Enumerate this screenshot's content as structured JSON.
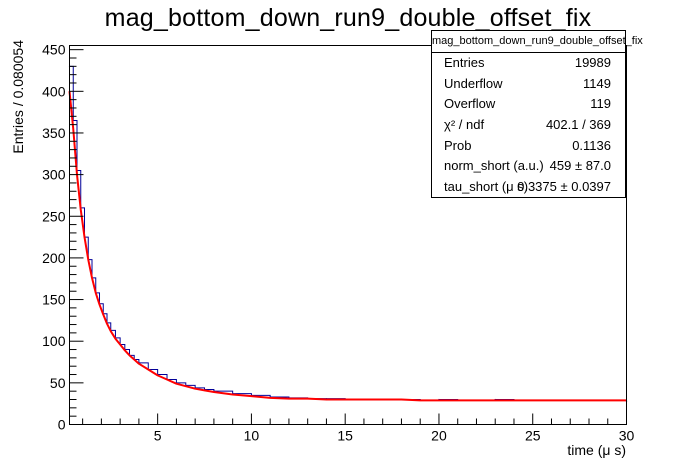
{
  "chart_data": {
    "type": "line",
    "title": "mag_bottom_down_run9_double_offset_fix",
    "xlabel": "time (μ s)",
    "ylabel": "Entries / 0.080054",
    "xlim": [
      0.3,
      30
    ],
    "ylim": [
      0,
      455
    ],
    "x_ticks": [
      5,
      10,
      15,
      20,
      25,
      30
    ],
    "y_ticks": [
      0,
      50,
      100,
      150,
      200,
      250,
      300,
      350,
      400,
      450
    ],
    "x_tick_labels": [
      "5",
      "10",
      "15",
      "20",
      "25",
      "30"
    ],
    "y_tick_labels": [
      "0",
      "50",
      "100",
      "150",
      "200",
      "250",
      "300",
      "350",
      "400",
      "450"
    ],
    "grid": false,
    "series": [
      {
        "color": "#000099",
        "style": "histogram",
        "x": [
          0.3,
          0.5,
          0.7,
          0.9,
          1.1,
          1.3,
          1.5,
          1.7,
          1.9,
          2.1,
          2.3,
          2.5,
          2.75,
          3.0,
          3.25,
          3.5,
          3.75,
          4.0,
          4.5,
          5.0,
          5.5,
          6.0,
          6.5,
          7.0,
          7.5,
          8.0,
          9.0,
          10.0,
          11.0,
          12.0,
          13.0,
          14.0,
          15.0,
          16.0,
          17.0,
          18.0,
          19.0,
          20.0,
          21.0,
          22.0,
          23.0,
          24.0,
          25.0,
          26.0,
          27.0,
          28.0,
          29.0,
          30.0
        ],
        "values": [
          430,
          365,
          305,
          260,
          225,
          198,
          176,
          158,
          145,
          133,
          122,
          113,
          104,
          96,
          90,
          83,
          78,
          74,
          66,
          60,
          54,
          50,
          47,
          44,
          42,
          40,
          37,
          35,
          33,
          32,
          31,
          31,
          30,
          30,
          30,
          30,
          29,
          30,
          29,
          29,
          30,
          29,
          29,
          29,
          29,
          29,
          29,
          28
        ]
      },
      {
        "color": "#ff0000",
        "style": "fit",
        "x": [
          0.3,
          0.5,
          0.7,
          0.9,
          1.1,
          1.3,
          1.5,
          1.7,
          1.9,
          2.1,
          2.3,
          2.5,
          2.75,
          3.0,
          3.25,
          3.5,
          3.75,
          4.0,
          4.5,
          5.0,
          5.5,
          6.0,
          6.5,
          7.0,
          7.5,
          8.0,
          9.0,
          10.0,
          11.0,
          12.0,
          13.0,
          14.0,
          15.0,
          16.0,
          17.0,
          18.0,
          19.0,
          20.0,
          21.0,
          22.0,
          23.0,
          24.0,
          25.0,
          26.0,
          27.0,
          28.0,
          29.0,
          30.0
        ],
        "values": [
          400,
          355,
          300,
          258,
          225,
          198,
          176,
          158,
          144,
          132,
          121,
          112,
          103,
          96,
          89,
          83,
          78,
          73,
          66,
          59,
          54,
          49,
          46,
          43,
          41,
          39,
          36,
          34,
          32,
          31,
          31,
          30,
          30,
          30,
          30,
          30,
          29,
          29,
          29,
          29,
          29,
          29,
          29,
          29,
          29,
          29,
          29,
          29
        ]
      }
    ],
    "stats": {
      "title": "mag_bottom_down_run9_double_offset_fix",
      "rows": [
        {
          "name": "Entries",
          "value": "19989"
        },
        {
          "name": "Underflow",
          "value": "1149"
        },
        {
          "name": "Overflow",
          "value": "119"
        },
        {
          "name": "χ² / ndf",
          "value": "402.1 / 369"
        },
        {
          "name": "Prob",
          "value": "0.1136"
        },
        {
          "name": "norm_short (a.u.)",
          "value": "459 ± 87.0"
        },
        {
          "name": "tau_short (μ s)",
          "value": "0.3375 ± 0.0397"
        }
      ]
    },
    "legend": "top-right"
  }
}
